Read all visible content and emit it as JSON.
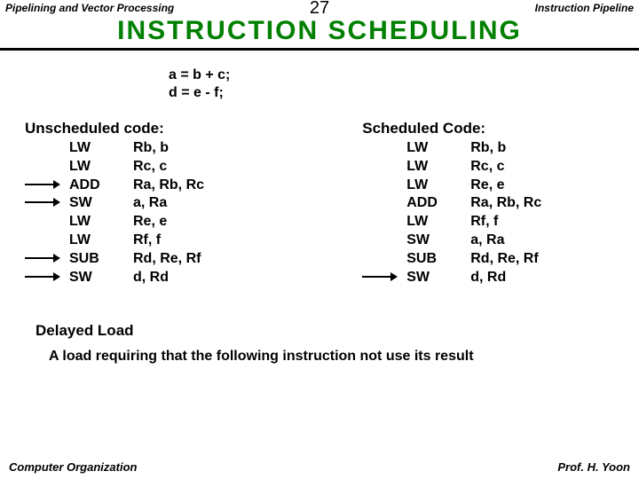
{
  "header": {
    "left": "Pipelining and Vector Processing",
    "page": "27",
    "right": "Instruction Pipeline"
  },
  "title": "INSTRUCTION  SCHEDULING",
  "source": {
    "line1": "a = b + c;",
    "line2": "d = e - f;"
  },
  "left": {
    "title": "Unscheduled code:",
    "rows": [
      {
        "arrow": false,
        "op": "LW",
        "args": "Rb, b"
      },
      {
        "arrow": false,
        "op": "LW",
        "args": "Rc, c"
      },
      {
        "arrow": true,
        "op": "ADD",
        "args": "Ra, Rb, Rc"
      },
      {
        "arrow": true,
        "op": "SW",
        "args": "a, Ra"
      },
      {
        "arrow": false,
        "op": "LW",
        "args": "Re, e"
      },
      {
        "arrow": false,
        "op": "LW",
        "args": "Rf, f"
      },
      {
        "arrow": true,
        "op": "SUB",
        "args": "Rd, Re, Rf"
      },
      {
        "arrow": true,
        "op": "SW",
        "args": "d, Rd"
      }
    ]
  },
  "right": {
    "title": "Scheduled Code:",
    "rows": [
      {
        "arrow": false,
        "op": "LW",
        "args": "Rb, b"
      },
      {
        "arrow": false,
        "op": "LW",
        "args": "Rc, c"
      },
      {
        "arrow": false,
        "op": "LW",
        "args": "Re, e"
      },
      {
        "arrow": false,
        "op": "ADD",
        "args": "Ra, Rb, Rc"
      },
      {
        "arrow": false,
        "op": "LW",
        "args": "Rf, f"
      },
      {
        "arrow": false,
        "op": "SW",
        "args": "a, Ra"
      },
      {
        "arrow": false,
        "op": "SUB",
        "args": "Rd, Re, Rf"
      },
      {
        "arrow": true,
        "op": "SW",
        "args": "d, Rd"
      }
    ]
  },
  "delayed": "Delayed Load",
  "note": "A load requiring that the following instruction not use its result",
  "footer": {
    "left": "Computer Organization",
    "right": "Prof.  H.  Yoon"
  }
}
